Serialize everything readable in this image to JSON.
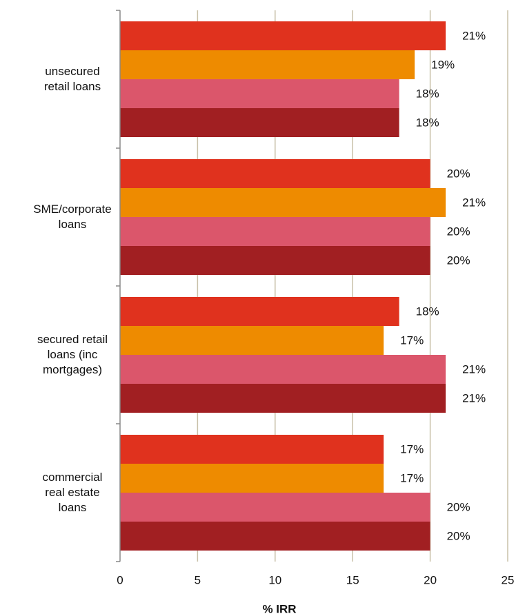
{
  "chart_data": {
    "type": "bar",
    "orientation": "horizontal",
    "categories": [
      "unsecured\nretail loans",
      "SME/corporate\nloans",
      "secured retail\nloans (inc\nmortgages)",
      "commercial\nreal estate\nloans"
    ],
    "series": [
      {
        "color": "#e0321e",
        "values": [
          21,
          20,
          18,
          17
        ],
        "value_labels": [
          "21%",
          "20%",
          "18%",
          "17%"
        ]
      },
      {
        "color": "#ee8b00",
        "values": [
          19,
          21,
          17,
          17
        ],
        "value_labels": [
          "19%",
          "21%",
          "17%",
          "17%"
        ]
      },
      {
        "color": "#db566b",
        "values": [
          18,
          20,
          21,
          20
        ],
        "value_labels": [
          "18%",
          "20%",
          "21%",
          "20%"
        ]
      },
      {
        "color": "#a11f22",
        "values": [
          18,
          20,
          21,
          20
        ],
        "value_labels": [
          "18%",
          "20%",
          "21%",
          "20%"
        ]
      }
    ],
    "xlabel": "% IRR",
    "xlim": [
      0,
      25
    ],
    "xticks": [
      0,
      5,
      10,
      15,
      20,
      25
    ],
    "grid": true
  }
}
